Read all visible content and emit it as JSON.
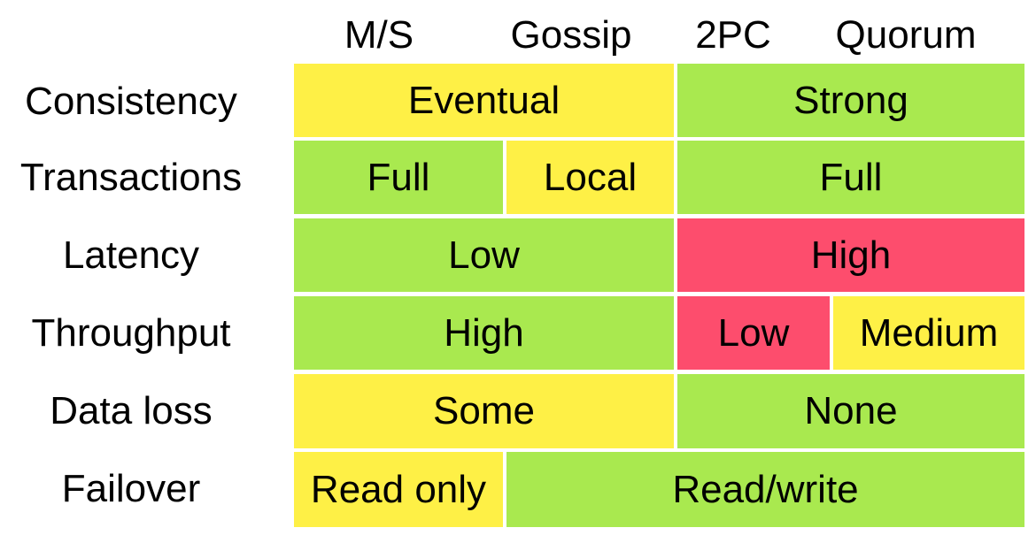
{
  "columns": [
    "M/S",
    "Gossip",
    "2PC",
    "Quorum"
  ],
  "colors": {
    "yellow": "#fef046",
    "green": "#a9e94f",
    "red": "#fd4d6d"
  },
  "rows": [
    {
      "label": "Consistency",
      "cells": [
        {
          "text": "Eventual",
          "columns": [
            "M/S",
            "Gossip"
          ],
          "color": "yellow"
        },
        {
          "text": "Strong",
          "columns": [
            "2PC",
            "Quorum"
          ],
          "color": "green"
        }
      ]
    },
    {
      "label": "Transactions",
      "cells": [
        {
          "text": "Full",
          "columns": [
            "M/S"
          ],
          "color": "green"
        },
        {
          "text": "Local",
          "columns": [
            "Gossip"
          ],
          "color": "yellow"
        },
        {
          "text": "Full",
          "columns": [
            "2PC",
            "Quorum"
          ],
          "color": "green"
        }
      ]
    },
    {
      "label": "Latency",
      "cells": [
        {
          "text": "Low",
          "columns": [
            "M/S",
            "Gossip"
          ],
          "color": "green"
        },
        {
          "text": "High",
          "columns": [
            "2PC",
            "Quorum"
          ],
          "color": "red"
        }
      ]
    },
    {
      "label": "Throughput",
      "cells": [
        {
          "text": "High",
          "columns": [
            "M/S",
            "Gossip"
          ],
          "color": "green"
        },
        {
          "text": "Low",
          "columns": [
            "2PC"
          ],
          "color": "red"
        },
        {
          "text": "Medium",
          "columns": [
            "Quorum"
          ],
          "color": "yellow"
        }
      ]
    },
    {
      "label": "Data loss",
      "cells": [
        {
          "text": "Some",
          "columns": [
            "M/S",
            "Gossip"
          ],
          "color": "yellow"
        },
        {
          "text": "None",
          "columns": [
            "2PC",
            "Quorum"
          ],
          "color": "green"
        }
      ]
    },
    {
      "label": "Failover",
      "cells": [
        {
          "text": "Read only",
          "columns": [
            "M/S"
          ],
          "color": "yellow"
        },
        {
          "text": "Read/write",
          "columns": [
            "Gossip",
            "2PC",
            "Quorum"
          ],
          "color": "green"
        }
      ]
    }
  ]
}
